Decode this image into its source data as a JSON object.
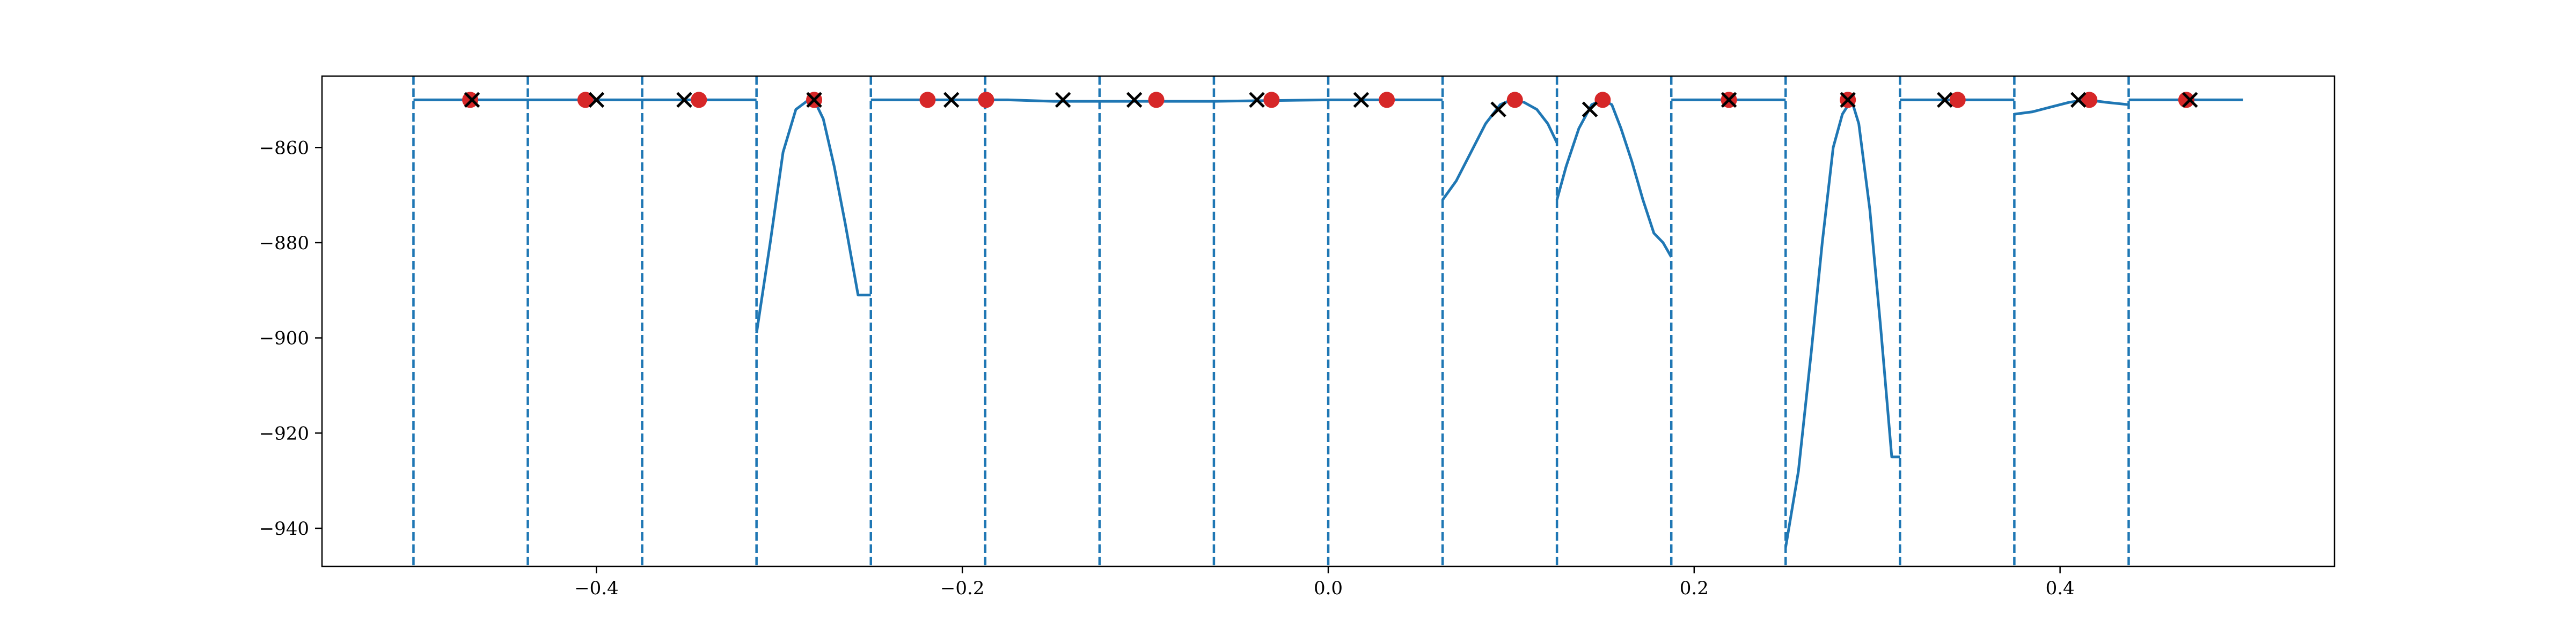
{
  "chart_data": {
    "type": "line",
    "title": "",
    "xlabel": "",
    "ylabel": "",
    "xlim": [
      -0.55,
      0.55
    ],
    "ylim": [
      -948,
      -845
    ],
    "grid": false,
    "legend": "none",
    "x_ticks": [
      -0.4,
      -0.2,
      0.0,
      0.2,
      0.4
    ],
    "x_tick_labels": [
      "−0.4",
      "−0.2",
      "0.0",
      "0.2",
      "0.4"
    ],
    "y_ticks": [
      -940,
      -920,
      -900,
      -880,
      -860
    ],
    "y_tick_labels": [
      "−940",
      "−920",
      "−900",
      "−880",
      "−860"
    ],
    "colors": {
      "line": "#1f77b4",
      "point": "#d62728",
      "cross": "#000000",
      "axes": "#000000"
    },
    "boundaries": [
      -0.5,
      -0.4375,
      -0.375,
      -0.3125,
      -0.25,
      -0.1875,
      -0.125,
      -0.0625,
      0.0,
      0.0625,
      0.125,
      0.1875,
      0.25,
      0.3125,
      0.375,
      0.4375
    ],
    "series": [
      {
        "x": [
          -0.5,
          -0.4375,
          -0.4375,
          -0.375,
          -0.375,
          -0.3125
        ],
        "y": [
          -850,
          -850,
          -850,
          -850,
          -850,
          -850
        ]
      },
      {
        "x": [
          -0.3125,
          -0.305,
          -0.298,
          -0.291,
          -0.284,
          -0.281,
          -0.276,
          -0.27,
          -0.264,
          -0.257,
          -0.25
        ],
        "y": [
          -899,
          -880,
          -861,
          -852,
          -850,
          -850,
          -854,
          -864,
          -876,
          -891,
          -891
        ]
      },
      {
        "x": [
          -0.25,
          -0.1875,
          -0.175,
          -0.15,
          -0.125,
          -0.0625,
          0.0,
          0.0625
        ],
        "y": [
          -850,
          -850,
          -850,
          -850.3,
          -850.3,
          -850.3,
          -850,
          -850
        ]
      },
      {
        "x": [
          0.0625,
          0.07,
          0.078,
          0.086,
          0.094,
          0.1,
          0.107,
          0.114,
          0.12,
          0.125
        ],
        "y": [
          -871,
          -867,
          -861,
          -855,
          -851,
          -850,
          -850.5,
          -852,
          -855,
          -859
        ]
      },
      {
        "x": [
          0.125,
          0.13,
          0.137,
          0.144,
          0.15,
          0.155,
          0.16,
          0.166,
          0.172,
          0.178,
          0.183,
          0.1875
        ],
        "y": [
          -871,
          -864,
          -856,
          -851,
          -850,
          -851,
          -856,
          -863,
          -871,
          -878,
          -880,
          -883
        ]
      },
      {
        "x": [
          0.1875,
          0.25
        ],
        "y": [
          -850,
          -850
        ]
      },
      {
        "x": [
          0.25,
          0.257,
          0.264,
          0.27,
          0.276,
          0.281,
          0.286,
          0.29,
          0.296,
          0.302,
          0.308,
          0.3125
        ],
        "y": [
          -944,
          -928,
          -903,
          -880,
          -860,
          -853,
          -850,
          -855,
          -873,
          -898,
          -925,
          -925
        ]
      },
      {
        "x": [
          0.3125,
          0.375
        ],
        "y": [
          -850,
          -850
        ]
      },
      {
        "x": [
          0.375,
          0.385,
          0.395,
          0.405,
          0.415,
          0.425,
          0.4375
        ],
        "y": [
          -853,
          -852.5,
          -851.5,
          -850.5,
          -850,
          -850.5,
          -851
        ]
      },
      {
        "x": [
          0.4375,
          0.5
        ],
        "y": [
          -850,
          -850
        ]
      }
    ],
    "red_points": {
      "x": [
        -0.469,
        -0.406,
        -0.344,
        -0.281,
        -0.219,
        -0.187,
        -0.094,
        -0.031,
        0.032,
        0.102,
        0.15,
        0.219,
        0.284,
        0.344,
        0.416,
        0.469
      ],
      "y": [
        -850,
        -850,
        -850,
        -850,
        -850,
        -850,
        -850,
        -850,
        -850,
        -850,
        -850,
        -850,
        -850,
        -850,
        -850,
        -850
      ]
    },
    "cross_points": {
      "x": [
        -0.468,
        -0.4,
        -0.352,
        -0.281,
        -0.206,
        -0.145,
        -0.106,
        -0.039,
        0.018,
        0.093,
        0.143,
        0.219,
        0.284,
        0.337,
        0.41,
        0.471
      ],
      "y": [
        -850,
        -850,
        -850,
        -850,
        -850,
        -850,
        -850,
        -850,
        -850,
        -852,
        -852,
        -850,
        -850,
        -850,
        -850,
        -850
      ]
    }
  }
}
